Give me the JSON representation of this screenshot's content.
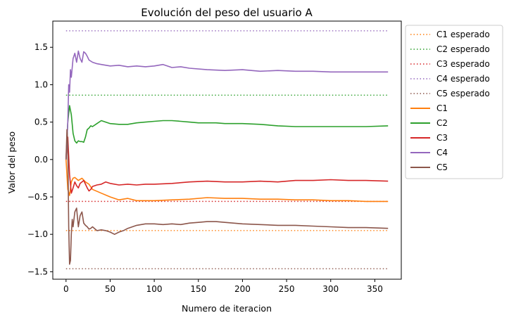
{
  "chart_data": {
    "type": "line",
    "title": "Evolución del peso del usuario A",
    "xlabel": "Numero de iteracion",
    "ylabel": "Valor del peso",
    "xlim": [
      -15,
      380
    ],
    "ylim": [
      -1.6,
      1.85
    ],
    "xticks": [
      0,
      50,
      100,
      150,
      200,
      250,
      300,
      350
    ],
    "yticks": [
      -1.5,
      -1.0,
      -0.5,
      0.0,
      0.5,
      1.0,
      1.5
    ],
    "ytick_labels": [
      "−1.5",
      "−1.0",
      "−0.5",
      "0.0",
      "0.5",
      "1.0",
      "1.5"
    ],
    "grid": false,
    "legend_position": "outside-right-top",
    "expected": [
      {
        "name": "C1 esperado",
        "value": -0.95,
        "color": "#ff7f0e"
      },
      {
        "name": "C2 esperado",
        "value": 0.86,
        "color": "#2ca02c"
      },
      {
        "name": "C3 esperado",
        "value": -0.56,
        "color": "#d62728"
      },
      {
        "name": "C4 esperado",
        "value": 1.72,
        "color": "#9467bd"
      },
      {
        "name": "C5 esperado",
        "value": -1.46,
        "color": "#8c564b"
      }
    ],
    "series": [
      {
        "name": "C1",
        "color": "#ff7f0e",
        "x": [
          0,
          2,
          4,
          6,
          8,
          10,
          14,
          18,
          22,
          26,
          30,
          40,
          50,
          60,
          70,
          80,
          100,
          120,
          140,
          160,
          180,
          200,
          220,
          240,
          260,
          280,
          300,
          320,
          340,
          365
        ],
        "y": [
          0.0,
          -0.4,
          -0.48,
          -0.3,
          -0.25,
          -0.24,
          -0.28,
          -0.25,
          -0.3,
          -0.33,
          -0.4,
          -0.45,
          -0.5,
          -0.54,
          -0.52,
          -0.55,
          -0.55,
          -0.54,
          -0.53,
          -0.51,
          -0.52,
          -0.52,
          -0.53,
          -0.53,
          -0.54,
          -0.54,
          -0.55,
          -0.55,
          -0.56,
          -0.56
        ]
      },
      {
        "name": "C2",
        "color": "#2ca02c",
        "x": [
          0,
          2,
          4,
          6,
          8,
          10,
          12,
          14,
          16,
          18,
          20,
          22,
          24,
          26,
          28,
          30,
          35,
          40,
          45,
          50,
          60,
          70,
          80,
          90,
          100,
          110,
          120,
          130,
          140,
          150,
          160,
          170,
          180,
          200,
          220,
          240,
          260,
          280,
          300,
          320,
          340,
          365
        ],
        "y": [
          0.0,
          0.5,
          0.72,
          0.6,
          0.35,
          0.25,
          0.22,
          0.25,
          0.24,
          0.24,
          0.23,
          0.3,
          0.4,
          0.42,
          0.45,
          0.44,
          0.48,
          0.52,
          0.5,
          0.48,
          0.47,
          0.47,
          0.49,
          0.5,
          0.51,
          0.52,
          0.52,
          0.51,
          0.5,
          0.49,
          0.49,
          0.49,
          0.48,
          0.48,
          0.47,
          0.45,
          0.44,
          0.44,
          0.44,
          0.44,
          0.44,
          0.45
        ]
      },
      {
        "name": "C3",
        "color": "#d62728",
        "x": [
          0,
          2,
          4,
          6,
          8,
          10,
          12,
          14,
          16,
          18,
          20,
          22,
          24,
          26,
          28,
          30,
          35,
          40,
          45,
          50,
          60,
          70,
          80,
          90,
          100,
          120,
          140,
          160,
          180,
          200,
          220,
          240,
          260,
          280,
          300,
          320,
          340,
          365
        ],
        "y": [
          0.0,
          0.3,
          -0.2,
          -0.45,
          -0.38,
          -0.3,
          -0.35,
          -0.38,
          -0.32,
          -0.3,
          -0.28,
          -0.33,
          -0.38,
          -0.42,
          -0.4,
          -0.36,
          -0.34,
          -0.33,
          -0.3,
          -0.32,
          -0.34,
          -0.33,
          -0.34,
          -0.33,
          -0.33,
          -0.32,
          -0.3,
          -0.29,
          -0.3,
          -0.3,
          -0.29,
          -0.3,
          -0.28,
          -0.28,
          -0.27,
          -0.28,
          -0.28,
          -0.29
        ]
      },
      {
        "name": "C4",
        "color": "#9467bd",
        "x": [
          0,
          2,
          3,
          4,
          5,
          6,
          8,
          10,
          12,
          14,
          16,
          18,
          20,
          22,
          24,
          26,
          30,
          35,
          40,
          50,
          60,
          70,
          80,
          90,
          100,
          110,
          120,
          130,
          140,
          160,
          180,
          200,
          220,
          240,
          260,
          280,
          300,
          320,
          340,
          365
        ],
        "y": [
          0.0,
          0.5,
          1.0,
          0.9,
          1.2,
          1.1,
          1.35,
          1.42,
          1.3,
          1.45,
          1.35,
          1.3,
          1.44,
          1.42,
          1.38,
          1.33,
          1.3,
          1.28,
          1.27,
          1.25,
          1.26,
          1.24,
          1.25,
          1.24,
          1.25,
          1.27,
          1.23,
          1.24,
          1.22,
          1.2,
          1.19,
          1.2,
          1.18,
          1.19,
          1.18,
          1.18,
          1.17,
          1.17,
          1.17,
          1.17
        ]
      },
      {
        "name": "C5",
        "color": "#8c564b",
        "x": [
          0,
          1,
          2,
          3,
          4,
          5,
          6,
          7,
          8,
          10,
          12,
          14,
          16,
          18,
          20,
          22,
          24,
          26,
          28,
          30,
          35,
          40,
          45,
          50,
          55,
          60,
          65,
          70,
          80,
          90,
          100,
          110,
          120,
          130,
          140,
          150,
          160,
          170,
          180,
          200,
          220,
          240,
          260,
          280,
          300,
          320,
          340,
          365
        ],
        "y": [
          0.0,
          0.4,
          0.2,
          -0.9,
          -1.4,
          -1.35,
          -1.0,
          -0.8,
          -0.9,
          -0.7,
          -0.65,
          -0.9,
          -0.75,
          -0.7,
          -0.85,
          -0.88,
          -0.9,
          -0.93,
          -0.92,
          -0.9,
          -0.95,
          -0.94,
          -0.95,
          -0.97,
          -1.0,
          -0.97,
          -0.95,
          -0.92,
          -0.88,
          -0.86,
          -0.86,
          -0.87,
          -0.86,
          -0.87,
          -0.85,
          -0.84,
          -0.83,
          -0.83,
          -0.84,
          -0.86,
          -0.87,
          -0.88,
          -0.88,
          -0.89,
          -0.9,
          -0.91,
          -0.91,
          -0.92
        ]
      }
    ]
  }
}
